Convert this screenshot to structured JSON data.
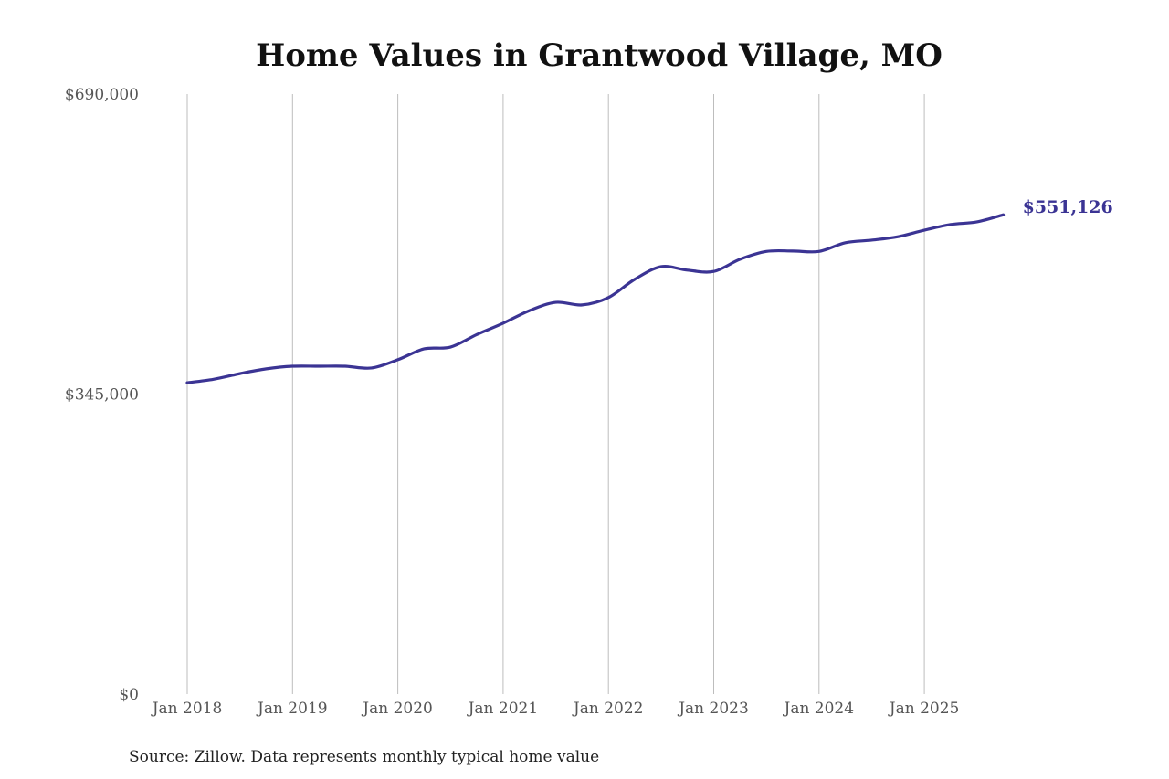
{
  "chart_data": {
    "type": "line",
    "title": "Home Values in Grantwood Village, MO",
    "source": "Source: Zillow. Data represents monthly typical home value",
    "xlabel": "",
    "ylabel": "",
    "ylim": [
      0,
      690000
    ],
    "y_ticks": [
      {
        "value": 0,
        "label": "$0"
      },
      {
        "value": 345000,
        "label": "$345,000"
      },
      {
        "value": 690000,
        "label": "$690,000"
      }
    ],
    "x_ticks": [
      {
        "value": "2018-01",
        "label": "Jan 2018"
      },
      {
        "value": "2019-01",
        "label": "Jan 2019"
      },
      {
        "value": "2020-01",
        "label": "Jan 2020"
      },
      {
        "value": "2021-01",
        "label": "Jan 2021"
      },
      {
        "value": "2022-01",
        "label": "Jan 2022"
      },
      {
        "value": "2023-01",
        "label": "Jan 2023"
      },
      {
        "value": "2024-01",
        "label": "Jan 2024"
      },
      {
        "value": "2025-01",
        "label": "Jan 2025"
      }
    ],
    "grid": "vertical lines at x ticks",
    "line_color": "#3b3494",
    "end_label": "$551,126",
    "series": [
      {
        "x": [
          "2018-01",
          "2018-04",
          "2018-07",
          "2018-10",
          "2019-01",
          "2019-04",
          "2019-07",
          "2019-10",
          "2020-01",
          "2020-04",
          "2020-07",
          "2020-10",
          "2021-01",
          "2021-04",
          "2021-07",
          "2021-10",
          "2022-01",
          "2022-04",
          "2022-07",
          "2022-10",
          "2023-01",
          "2023-04",
          "2023-07",
          "2023-10",
          "2024-01",
          "2024-04",
          "2024-07",
          "2024-10",
          "2025-01",
          "2025-04",
          "2025-07",
          "2025-10"
        ],
        "y": [
          358000,
          362000,
          368500,
          374000,
          377000,
          377000,
          377000,
          375000,
          384500,
          397000,
          399000,
          413500,
          426500,
          441000,
          450500,
          447500,
          456000,
          477000,
          491500,
          487500,
          486000,
          500000,
          509000,
          509500,
          509000,
          519000,
          522000,
          526000,
          533500,
          540000,
          543000,
          551126
        ]
      }
    ]
  }
}
